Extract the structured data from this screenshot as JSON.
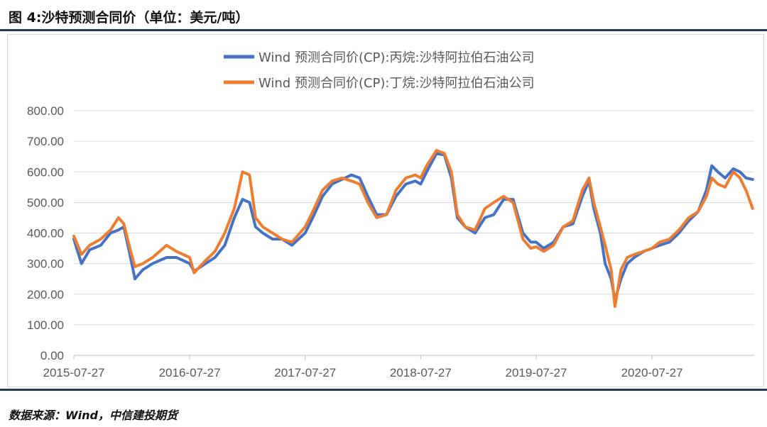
{
  "header": {
    "title": "图 4:沙特预测合同价（单位：美元/吨）"
  },
  "footer": {
    "source": "数据来源：Wind，中信建投期货"
  },
  "colors": {
    "propane": "#4472C4",
    "butane": "#ED7D31",
    "grid": "#d9d9d9",
    "rule": "#1f3b5c"
  },
  "chart_data": {
    "type": "line",
    "title": "",
    "xlabel": "",
    "ylabel": "",
    "ylim": [
      0,
      800
    ],
    "yticks": [
      "0.00",
      "100.00",
      "200.00",
      "300.00",
      "400.00",
      "500.00",
      "600.00",
      "700.00",
      "800.00"
    ],
    "xlim": [
      "2015-07-27",
      "2021-06-15"
    ],
    "xticks": [
      "2015-07-27",
      "2016-07-27",
      "2017-07-27",
      "2018-07-27",
      "2019-07-27",
      "2020-07-27"
    ],
    "grid": true,
    "legend_position": "top",
    "series": [
      {
        "name": "Wind 预测合同价(CP):丙烷:沙特阿拉伯石油公司",
        "color": "#4472C4",
        "points": [
          [
            "2015-07-27",
            380
          ],
          [
            "2015-08-20",
            300
          ],
          [
            "2015-09-15",
            345
          ],
          [
            "2015-10-20",
            360
          ],
          [
            "2015-11-20",
            400
          ],
          [
            "2015-12-15",
            410
          ],
          [
            "2016-01-01",
            420
          ],
          [
            "2016-01-20",
            330
          ],
          [
            "2016-02-05",
            250
          ],
          [
            "2016-03-01",
            280
          ],
          [
            "2016-04-01",
            300
          ],
          [
            "2016-05-15",
            320
          ],
          [
            "2016-06-15",
            320
          ],
          [
            "2016-07-27",
            300
          ],
          [
            "2016-08-10",
            275
          ],
          [
            "2016-09-15",
            300
          ],
          [
            "2016-10-15",
            320
          ],
          [
            "2016-11-15",
            360
          ],
          [
            "2016-12-15",
            450
          ],
          [
            "2017-01-10",
            510
          ],
          [
            "2017-02-01",
            500
          ],
          [
            "2017-02-20",
            420
          ],
          [
            "2017-03-15",
            400
          ],
          [
            "2017-04-15",
            380
          ],
          [
            "2017-05-15",
            380
          ],
          [
            "2017-06-15",
            360
          ],
          [
            "2017-07-27",
            400
          ],
          [
            "2017-08-20",
            450
          ],
          [
            "2017-09-20",
            520
          ],
          [
            "2017-10-20",
            560
          ],
          [
            "2017-11-20",
            575
          ],
          [
            "2017-12-20",
            590
          ],
          [
            "2018-01-15",
            580
          ],
          [
            "2018-02-10",
            520
          ],
          [
            "2018-03-10",
            460
          ],
          [
            "2018-04-10",
            460
          ],
          [
            "2018-05-10",
            520
          ],
          [
            "2018-06-10",
            560
          ],
          [
            "2018-07-10",
            570
          ],
          [
            "2018-07-27",
            560
          ],
          [
            "2018-08-15",
            600
          ],
          [
            "2018-09-15",
            660
          ],
          [
            "2018-10-10",
            655
          ],
          [
            "2018-11-01",
            580
          ],
          [
            "2018-11-20",
            450
          ],
          [
            "2018-12-15",
            420
          ],
          [
            "2019-01-15",
            400
          ],
          [
            "2019-02-15",
            450
          ],
          [
            "2019-03-15",
            460
          ],
          [
            "2019-04-15",
            510
          ],
          [
            "2019-05-15",
            510
          ],
          [
            "2019-06-15",
            400
          ],
          [
            "2019-07-10",
            370
          ],
          [
            "2019-07-27",
            370
          ],
          [
            "2019-08-20",
            350
          ],
          [
            "2019-09-20",
            370
          ],
          [
            "2019-10-20",
            420
          ],
          [
            "2019-11-20",
            430
          ],
          [
            "2019-12-20",
            520
          ],
          [
            "2020-01-10",
            570
          ],
          [
            "2020-01-25",
            480
          ],
          [
            "2020-02-15",
            400
          ],
          [
            "2020-03-01",
            300
          ],
          [
            "2020-03-20",
            250
          ],
          [
            "2020-04-01",
            180
          ],
          [
            "2020-04-20",
            250
          ],
          [
            "2020-05-10",
            300
          ],
          [
            "2020-06-01",
            320
          ],
          [
            "2020-07-01",
            340
          ],
          [
            "2020-07-27",
            350
          ],
          [
            "2020-08-20",
            360
          ],
          [
            "2020-09-20",
            370
          ],
          [
            "2020-10-20",
            400
          ],
          [
            "2020-11-20",
            440
          ],
          [
            "2020-12-20",
            470
          ],
          [
            "2021-01-15",
            540
          ],
          [
            "2021-02-01",
            620
          ],
          [
            "2021-02-20",
            600
          ],
          [
            "2021-03-15",
            580
          ],
          [
            "2021-04-10",
            610
          ],
          [
            "2021-05-01",
            600
          ],
          [
            "2021-05-20",
            580
          ],
          [
            "2021-06-10",
            575
          ]
        ]
      },
      {
        "name": "Wind 预测合同价(CP):丁烷:沙特阿拉伯石油公司",
        "color": "#ED7D31",
        "points": [
          [
            "2015-07-27",
            390
          ],
          [
            "2015-08-20",
            330
          ],
          [
            "2015-09-15",
            360
          ],
          [
            "2015-10-20",
            380
          ],
          [
            "2015-11-20",
            410
          ],
          [
            "2015-12-15",
            450
          ],
          [
            "2016-01-01",
            430
          ],
          [
            "2016-01-20",
            350
          ],
          [
            "2016-02-05",
            290
          ],
          [
            "2016-03-01",
            300
          ],
          [
            "2016-04-01",
            320
          ],
          [
            "2016-05-15",
            360
          ],
          [
            "2016-06-15",
            340
          ],
          [
            "2016-07-27",
            320
          ],
          [
            "2016-08-10",
            270
          ],
          [
            "2016-09-15",
            310
          ],
          [
            "2016-10-15",
            340
          ],
          [
            "2016-11-15",
            400
          ],
          [
            "2016-12-15",
            480
          ],
          [
            "2017-01-10",
            600
          ],
          [
            "2017-02-01",
            590
          ],
          [
            "2017-02-20",
            450
          ],
          [
            "2017-03-15",
            420
          ],
          [
            "2017-04-15",
            400
          ],
          [
            "2017-05-15",
            380
          ],
          [
            "2017-06-15",
            370
          ],
          [
            "2017-07-27",
            420
          ],
          [
            "2017-08-20",
            470
          ],
          [
            "2017-09-20",
            540
          ],
          [
            "2017-10-20",
            570
          ],
          [
            "2017-11-20",
            580
          ],
          [
            "2017-12-20",
            570
          ],
          [
            "2018-01-15",
            560
          ],
          [
            "2018-02-10",
            500
          ],
          [
            "2018-03-10",
            450
          ],
          [
            "2018-04-10",
            460
          ],
          [
            "2018-05-10",
            540
          ],
          [
            "2018-06-10",
            580
          ],
          [
            "2018-07-10",
            590
          ],
          [
            "2018-07-27",
            580
          ],
          [
            "2018-08-15",
            620
          ],
          [
            "2018-09-15",
            670
          ],
          [
            "2018-10-10",
            660
          ],
          [
            "2018-11-01",
            600
          ],
          [
            "2018-11-20",
            460
          ],
          [
            "2018-12-15",
            420
          ],
          [
            "2019-01-15",
            410
          ],
          [
            "2019-02-15",
            480
          ],
          [
            "2019-03-15",
            500
          ],
          [
            "2019-04-15",
            520
          ],
          [
            "2019-05-15",
            500
          ],
          [
            "2019-06-15",
            380
          ],
          [
            "2019-07-10",
            350
          ],
          [
            "2019-07-27",
            355
          ],
          [
            "2019-08-20",
            340
          ],
          [
            "2019-09-20",
            360
          ],
          [
            "2019-10-20",
            420
          ],
          [
            "2019-11-20",
            440
          ],
          [
            "2019-12-20",
            540
          ],
          [
            "2020-01-10",
            580
          ],
          [
            "2020-01-25",
            500
          ],
          [
            "2020-02-15",
            420
          ],
          [
            "2020-03-01",
            360
          ],
          [
            "2020-03-20",
            280
          ],
          [
            "2020-04-01",
            160
          ],
          [
            "2020-04-20",
            280
          ],
          [
            "2020-05-10",
            320
          ],
          [
            "2020-06-01",
            330
          ],
          [
            "2020-07-01",
            340
          ],
          [
            "2020-07-27",
            350
          ],
          [
            "2020-08-20",
            370
          ],
          [
            "2020-09-20",
            380
          ],
          [
            "2020-10-20",
            410
          ],
          [
            "2020-11-20",
            450
          ],
          [
            "2020-12-20",
            470
          ],
          [
            "2021-01-15",
            520
          ],
          [
            "2021-02-01",
            580
          ],
          [
            "2021-02-20",
            560
          ],
          [
            "2021-03-15",
            550
          ],
          [
            "2021-04-10",
            600
          ],
          [
            "2021-05-01",
            580
          ],
          [
            "2021-05-20",
            540
          ],
          [
            "2021-06-10",
            480
          ]
        ]
      }
    ]
  }
}
